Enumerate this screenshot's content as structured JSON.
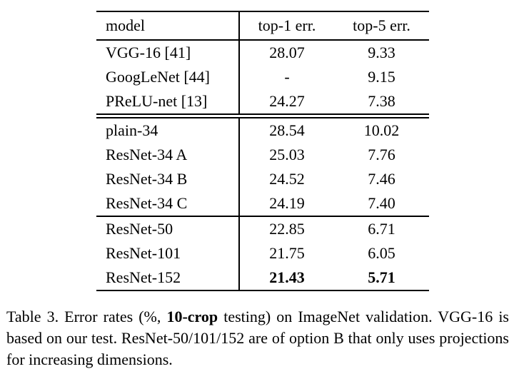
{
  "colors": {
    "text": "#000000",
    "background": "#ffffff",
    "rule": "#000000"
  },
  "table": {
    "headers": {
      "model": "model",
      "top1": "top-1 err.",
      "top5": "top-5 err."
    },
    "groups": [
      {
        "rows": [
          {
            "model": "VGG-16 [41]",
            "top1": "28.07",
            "top5": "9.33"
          },
          {
            "model": "GoogLeNet [44]",
            "top1": "-",
            "top5": "9.15"
          },
          {
            "model": "PReLU-net [13]",
            "top1": "24.27",
            "top5": "7.38"
          }
        ]
      },
      {
        "rows": [
          {
            "model": "plain-34",
            "top1": "28.54",
            "top5": "10.02"
          },
          {
            "model": "ResNet-34 A",
            "top1": "25.03",
            "top5": "7.76"
          },
          {
            "model": "ResNet-34 B",
            "top1": "24.52",
            "top5": "7.46"
          },
          {
            "model": "ResNet-34 C",
            "top1": "24.19",
            "top5": "7.40"
          }
        ]
      },
      {
        "rows": [
          {
            "model": "ResNet-50",
            "top1": "22.85",
            "top5": "6.71"
          },
          {
            "model": "ResNet-101",
            "top1": "21.75",
            "top5": "6.05"
          },
          {
            "model": "ResNet-152",
            "top1": "21.43",
            "top5": "5.71"
          }
        ]
      }
    ]
  },
  "caption": {
    "prefix": "Table 3. Error rates (%, ",
    "bold": "10-crop",
    "suffix": " testing) on ImageNet validation. VGG-16 is based on our test.  ResNet-50/101/152 are of option B that only uses projections for increasing dimensions."
  }
}
